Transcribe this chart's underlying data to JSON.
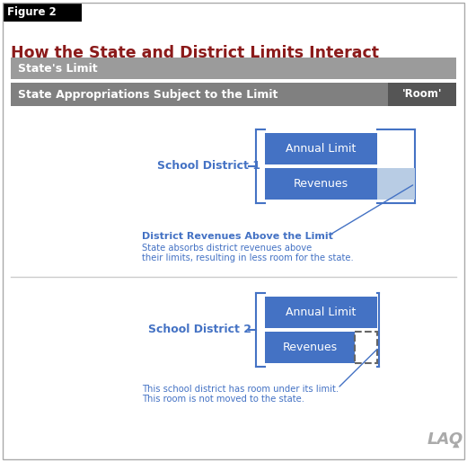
{
  "figure_label": "Figure 2",
  "title": "How the State and District Limits Interact",
  "title_color": "#8B1A1A",
  "bg_color": "#ffffff",
  "figure_label_bg": "#000000",
  "figure_label_color": "#ffffff",
  "state_limit_bar_color": "#9B9B9B",
  "state_limit_text": "State's Limit",
  "state_approp_bar_color": "#808080",
  "state_approp_text": "State Appropriations Subject to the Limit",
  "room_box_color": "#555555",
  "room_text": "'Room'",
  "blue_box_color": "#4472C4",
  "light_blue_color": "#B8CCE4",
  "bracket_color": "#4472C4",
  "sd1_label": "School District 1",
  "sd2_label": "School District 2",
  "annual_limit_text": "Annual Limit",
  "revenues_text": "Revenues",
  "annotation1_title": "District Revenues Above the Limit",
  "annotation1_line1": "State absorbs district revenues above",
  "annotation1_line2": "their limits, resulting in less room for the state.",
  "annotation2_line1": "This school district has room under its limit.",
  "annotation2_line2": "This room is not moved to the state.",
  "divider_color": "#CCCCCC",
  "lao_text": "LAO",
  "label_color": "#4472C4",
  "border_color": "#AAAAAA"
}
